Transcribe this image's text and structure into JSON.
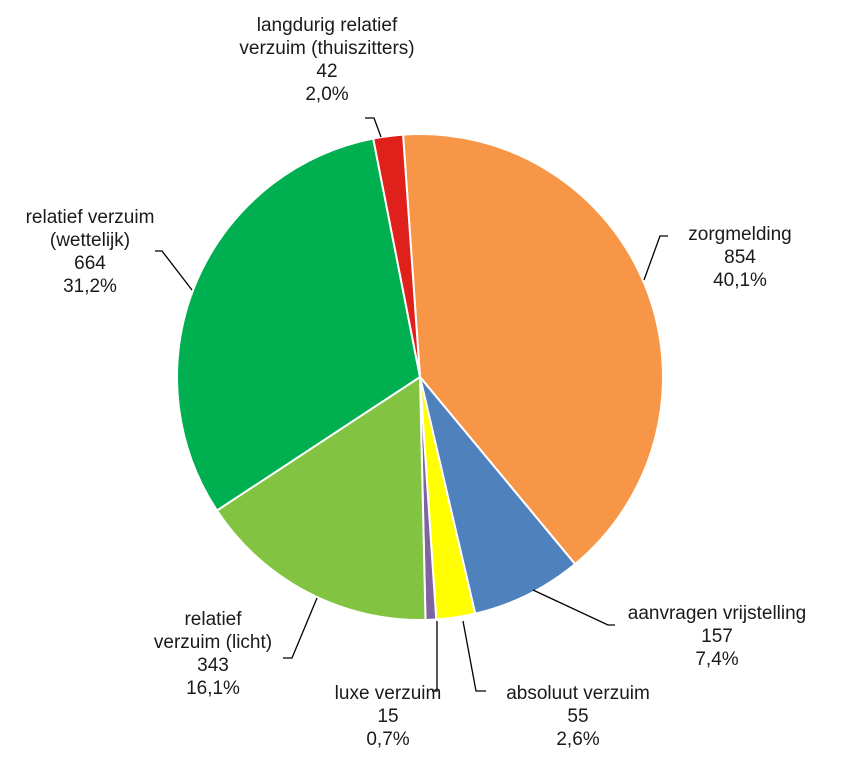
{
  "chart_data": {
    "type": "pie",
    "title": "",
    "start_angle_deg": -4,
    "direction": "clockwise",
    "slices": [
      {
        "label": [
          "zorgmelding"
        ],
        "value": 854,
        "value_label": "854",
        "percent_label": "40,1%",
        "color": "#F79646"
      },
      {
        "label": [
          "aanvragen vrijstelling"
        ],
        "value": 157,
        "value_label": "157",
        "percent_label": "7,4%",
        "color": "#4F81BD"
      },
      {
        "label": [
          "absoluut verzuim"
        ],
        "value": 55,
        "value_label": "55",
        "percent_label": "2,6%",
        "color": "#FFFF00"
      },
      {
        "label": [
          "luxe verzuim"
        ],
        "value": 15,
        "value_label": "15",
        "percent_label": "0,7%",
        "color": "#8064A2"
      },
      {
        "label": [
          "relatief",
          "verzuim (licht)"
        ],
        "value": 343,
        "value_label": "343",
        "percent_label": "16,1%",
        "color": "#82C341"
      },
      {
        "label": [
          "relatief verzuim",
          "(wettelijk)"
        ],
        "value": 664,
        "value_label": "664",
        "percent_label": "31,2%",
        "color": "#00B050"
      },
      {
        "label": [
          "langdurig relatief",
          "verzuim (thuiszitters)"
        ],
        "value": 42,
        "value_label": "42",
        "percent_label": "2,0%",
        "color": "#E0201B"
      }
    ]
  }
}
